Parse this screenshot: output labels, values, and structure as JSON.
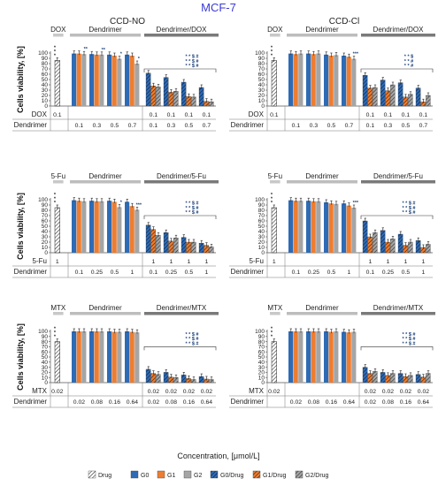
{
  "figure_title": "MCF-7",
  "x_axis_title": "Concentration, [μmol/L]",
  "legend": [
    {
      "label": "Drug",
      "style": "hatch",
      "color": "#ffffff",
      "hatch": "#222222"
    },
    {
      "label": "G0",
      "style": "solid",
      "color": "#2e6bb5"
    },
    {
      "label": "G1",
      "style": "solid",
      "color": "#ed7d31"
    },
    {
      "label": "G2",
      "style": "solid",
      "color": "#a5a5a5"
    },
    {
      "label": "G0/Drug",
      "style": "hatch",
      "color": "#2e6bb5",
      "hatch": "#111111"
    },
    {
      "label": "G1/Drug",
      "style": "hatch",
      "color": "#ed7d31",
      "hatch": "#111111"
    },
    {
      "label": "G2/Drug",
      "style": "hatch",
      "color": "#a5a5a5",
      "hatch": "#111111"
    }
  ],
  "chart_data": [
    {
      "type": "bar",
      "title": "CCD-NO",
      "ylabel": "Cells viability, [%]",
      "ylim": [
        0,
        100
      ],
      "yticks": [
        0,
        10,
        20,
        30,
        40,
        50,
        60,
        70,
        80,
        90,
        100
      ],
      "headers": [
        "DOX",
        "Dendrimer",
        "Dendrimer/DOX"
      ],
      "rows": [
        {
          "label": "DOX",
          "values": [
            "0.1",
            "",
            "",
            "",
            "",
            "0.1",
            "0.1",
            "0.1",
            "0.1"
          ]
        },
        {
          "label": "Dendrimer",
          "values": [
            "",
            "0.1",
            "0.3",
            "0.5",
            "0.7",
            "0.1",
            "0.3",
            "0.5",
            "0.7"
          ]
        }
      ],
      "drug": 86,
      "dend": [
        [
          99,
          99,
          98
        ],
        [
          98,
          97,
          97
        ],
        [
          97,
          95,
          89
        ],
        [
          97,
          95,
          80
        ]
      ],
      "combo": [
        [
          62,
          38,
          36
        ],
        [
          54,
          26,
          28
        ],
        [
          45,
          18,
          17
        ],
        [
          35,
          9,
          8
        ]
      ],
      "sig_drug": [
        "*",
        "*",
        "*"
      ],
      "sig_dend": [
        "**",
        "**",
        "*",
        "*"
      ],
      "sig_combo": [
        "* * $ #",
        "* * $ #",
        "* * $ #"
      ]
    },
    {
      "type": "bar",
      "title": "CCD-Cl",
      "ylabel": "",
      "ylim": [
        0,
        100
      ],
      "yticks": [
        0,
        10,
        20,
        30,
        40,
        50,
        60,
        70,
        80,
        90,
        100
      ],
      "headers": [
        "DOX",
        "Dendrimer",
        "Dendrimer/DOX"
      ],
      "rows": [
        {
          "label": "DOX",
          "values": [
            "0.1",
            "",
            "",
            "",
            "",
            "0.1",
            "0.1",
            "0.1",
            "0.1"
          ]
        },
        {
          "label": "Dendrimer",
          "values": [
            "",
            "0.1",
            "0.3",
            "0.5",
            "0.7",
            "0.1",
            "0.3",
            "0.5",
            "0.7"
          ]
        }
      ],
      "drug": 86,
      "dend": [
        [
          99,
          98,
          99
        ],
        [
          99,
          98,
          99
        ],
        [
          97,
          95,
          96
        ],
        [
          95,
          93,
          89
        ]
      ],
      "combo": [
        [
          58,
          34,
          35
        ],
        [
          49,
          29,
          40
        ],
        [
          44,
          17,
          22
        ],
        [
          34,
          8,
          20
        ]
      ],
      "sig_drug": [
        "*",
        "*",
        "*"
      ],
      "sig_dend": [
        "",
        "",
        "",
        "***"
      ],
      "sig_combo": [
        "* * $",
        "* * #",
        "* * #"
      ]
    },
    {
      "type": "bar",
      "title": "",
      "ylabel": "Cells viability, [%]",
      "ylim": [
        0,
        100
      ],
      "yticks": [
        0,
        10,
        20,
        30,
        40,
        50,
        60,
        70,
        80,
        90,
        100
      ],
      "headers": [
        "5-Fu",
        "Dendrimer",
        "Dendrimer/5-Fu"
      ],
      "rows": [
        {
          "label": "5-Fu",
          "values": [
            "1",
            "",
            "",
            "",
            "",
            "1",
            "1",
            "1",
            "1"
          ]
        },
        {
          "label": "Dendrimer",
          "values": [
            "",
            "0.1",
            "0.25",
            "0.5",
            "1",
            "0.1",
            "0.25",
            "0.5",
            "1"
          ]
        }
      ],
      "drug": 85,
      "dend": [
        [
          99,
          98,
          97
        ],
        [
          98,
          97,
          97
        ],
        [
          98,
          96,
          86
        ],
        [
          96,
          88,
          81
        ]
      ],
      "combo": [
        [
          52,
          44,
          33
        ],
        [
          38,
          22,
          28
        ],
        [
          29,
          20,
          20
        ],
        [
          18,
          14,
          11
        ]
      ],
      "sig_drug": [
        "*",
        "*",
        "*"
      ],
      "sig_dend": [
        "",
        "",
        "*",
        "***"
      ],
      "sig_combo": [
        "* * $ #",
        "* * $ #",
        "* * $ #"
      ]
    },
    {
      "type": "bar",
      "title": "",
      "ylabel": "",
      "ylim": [
        0,
        100
      ],
      "yticks": [
        0,
        10,
        20,
        30,
        40,
        50,
        60,
        70,
        80,
        90,
        100
      ],
      "headers": [
        "5-Fu",
        "Dendrimer",
        "Dendrimer/5-Fu"
      ],
      "rows": [
        {
          "label": "5-Fu",
          "values": [
            "1",
            "",
            "",
            "",
            "",
            "1",
            "1",
            "1",
            "1"
          ]
        },
        {
          "label": "Dendrimer",
          "values": [
            "",
            "0.1",
            "0.25",
            "0.5",
            "1",
            "0.1",
            "0.25",
            "0.5",
            "1"
          ]
        }
      ],
      "drug": 85,
      "dend": [
        [
          99,
          98,
          98
        ],
        [
          98,
          97,
          97
        ],
        [
          95,
          93,
          92
        ],
        [
          93,
          89,
          85
        ]
      ],
      "combo": [
        [
          60,
          30,
          38
        ],
        [
          42,
          20,
          26
        ],
        [
          35,
          14,
          20
        ],
        [
          23,
          10,
          16
        ]
      ],
      "sig_drug": [
        "*",
        "*",
        "*"
      ],
      "sig_dend": [
        "",
        "",
        "",
        "***"
      ],
      "sig_combo": [
        "* * $ #",
        "* * $ #",
        "* * $ #"
      ]
    },
    {
      "type": "bar",
      "title": "",
      "ylabel": "Cells viability, [%]",
      "ylim": [
        0,
        100
      ],
      "yticks": [
        0,
        10,
        20,
        30,
        40,
        50,
        60,
        70,
        80,
        90,
        100
      ],
      "headers": [
        "MTX",
        "Dendrimer",
        "Dendrimer/MTX"
      ],
      "rows": [
        {
          "label": "MTX",
          "values": [
            "0.02",
            "",
            "",
            "",
            "",
            "0.02",
            "0.02",
            "0.02",
            "0.02"
          ]
        },
        {
          "label": "Dendrimer",
          "values": [
            "",
            "0.02",
            "0.08",
            "0.16",
            "0.64",
            "0.02",
            "0.08",
            "0.16",
            "0.64"
          ]
        }
      ],
      "drug": 80,
      "dend": [
        [
          100,
          100,
          100
        ],
        [
          100,
          100,
          100
        ],
        [
          100,
          99,
          99
        ],
        [
          100,
          99,
          98
        ]
      ],
      "combo": [
        [
          26,
          18,
          16
        ],
        [
          20,
          11,
          10
        ],
        [
          15,
          8,
          6
        ],
        [
          12,
          7,
          6
        ]
      ],
      "sig_drug": [
        "*",
        "*",
        "*"
      ],
      "sig_dend": [
        "",
        "",
        "",
        ""
      ],
      "sig_combo": [
        "* * $ #",
        "* * $ #",
        "* * $ #"
      ]
    },
    {
      "type": "bar",
      "title": "",
      "ylabel": "",
      "ylim": [
        0,
        100
      ],
      "yticks": [
        0,
        10,
        20,
        30,
        40,
        50,
        60,
        70,
        80,
        90,
        100
      ],
      "headers": [
        "MTX",
        "Dendrimer",
        "Dendrimer/MTX"
      ],
      "rows": [
        {
          "label": "MTX",
          "values": [
            "0.02",
            "",
            "",
            "",
            "",
            "0.02",
            "0.02",
            "0.02",
            "0.02"
          ]
        },
        {
          "label": "Dendrimer",
          "values": [
            "",
            "0.02",
            "0.08",
            "0.16",
            "0.64",
            "0.02",
            "0.08",
            "0.16",
            "0.64"
          ]
        }
      ],
      "drug": 80,
      "dend": [
        [
          100,
          100,
          100
        ],
        [
          100,
          100,
          100
        ],
        [
          100,
          99,
          100
        ],
        [
          99,
          98,
          99
        ]
      ],
      "combo": [
        [
          30,
          18,
          22
        ],
        [
          20,
          14,
          18
        ],
        [
          18,
          12,
          14
        ],
        [
          16,
          11,
          18
        ]
      ],
      "sig_drug": [
        "*",
        "*",
        "*"
      ],
      "sig_dend": [
        "",
        "",
        "",
        ""
      ],
      "sig_combo": [
        "* * $ #",
        "* * $ #",
        "* * $ #"
      ]
    }
  ]
}
